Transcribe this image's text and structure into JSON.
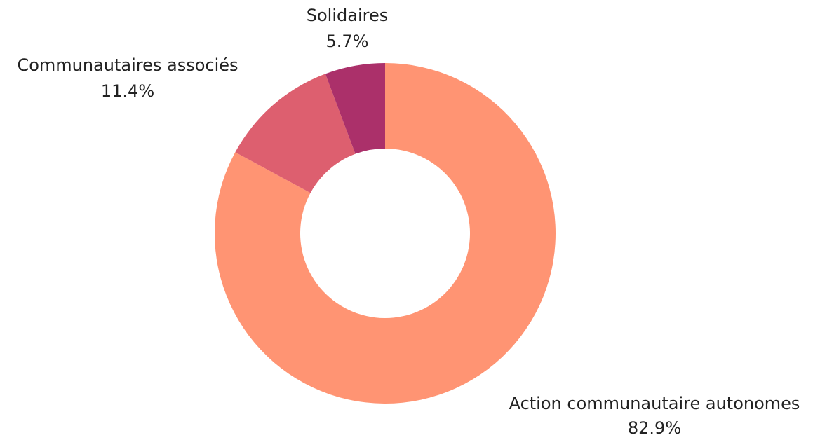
{
  "chart_data": {
    "type": "pie",
    "variant": "donut",
    "title": "",
    "slices": [
      {
        "label": "Action communautaire autonomes",
        "value": 82.9,
        "display": "82.9%",
        "color": "#FF9473"
      },
      {
        "label": "Communautaires associés",
        "value": 11.4,
        "display": "11.4%",
        "color": "#DD5F6F"
      },
      {
        "label": "Solidaires",
        "value": 5.7,
        "display": "5.7%",
        "color": "#AB306A"
      }
    ],
    "start_angle": "12 o'clock",
    "direction": "clockwise",
    "legend": "none",
    "labels": "outside"
  }
}
